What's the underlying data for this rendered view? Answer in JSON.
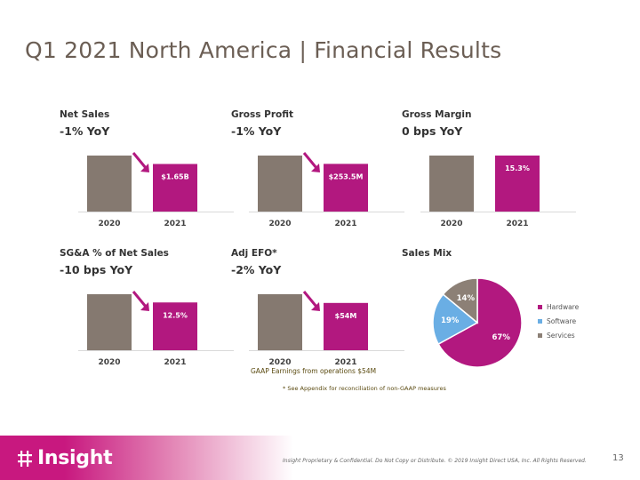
{
  "title": "Q1 2021 North America | Financial Results",
  "colors": {
    "prior": "#857970",
    "current": "#b2187f",
    "arrow": "#b2187f",
    "software": "#6aaee4",
    "services": "#8c8076"
  },
  "panels": [
    {
      "id": "net-sales",
      "title": "Net Sales",
      "subtitle": "-1% YoY"
    },
    {
      "id": "gross-profit",
      "title": "Gross Profit",
      "subtitle": "-1% YoY"
    },
    {
      "id": "gross-margin",
      "title": "Gross Margin",
      "subtitle": "0 bps YoY"
    },
    {
      "id": "sga",
      "title": "SG&A % of Net Sales",
      "subtitle": "-10 bps YoY"
    },
    {
      "id": "adj-efo",
      "title": "Adj EFO*",
      "subtitle": "-2% YoY"
    },
    {
      "id": "sales-mix",
      "title": "Sales Mix",
      "subtitle": ""
    }
  ],
  "chart_data": [
    {
      "type": "bar",
      "title": "Net Sales",
      "categories": [
        "2020",
        "2021"
      ],
      "values": [
        1.67,
        1.65
      ],
      "unit": "$B",
      "data_labels": [
        "",
        "$1.65B"
      ],
      "arrow": true
    },
    {
      "type": "bar",
      "title": "Gross Profit",
      "categories": [
        "2020",
        "2021"
      ],
      "values": [
        256,
        253.5
      ],
      "unit": "$M",
      "data_labels": [
        "",
        "$253.5M"
      ],
      "arrow": true
    },
    {
      "type": "bar",
      "title": "Gross Margin",
      "categories": [
        "2020",
        "2021"
      ],
      "values": [
        15.3,
        15.3
      ],
      "unit": "%",
      "data_labels": [
        "",
        "15.3%"
      ],
      "arrow": false
    },
    {
      "type": "bar",
      "title": "SG&A % of Net Sales",
      "categories": [
        "2020",
        "2021"
      ],
      "values": [
        12.6,
        12.5
      ],
      "unit": "%",
      "data_labels": [
        "",
        "12.5%"
      ],
      "arrow": true
    },
    {
      "type": "bar",
      "title": "Adj EFO*",
      "categories": [
        "2020",
        "2021"
      ],
      "values": [
        55,
        54
      ],
      "unit": "$M",
      "data_labels": [
        "",
        "$54M"
      ],
      "arrow": true
    },
    {
      "type": "pie",
      "title": "Sales Mix",
      "categories": [
        "Hardware",
        "Software",
        "Services"
      ],
      "values": [
        67,
        19,
        14
      ],
      "data_labels": [
        "67%",
        "19%",
        "14%"
      ],
      "legend": "right"
    }
  ],
  "notes": {
    "gaap": "GAAP Earnings from operations $54M",
    "appendix": "* See Appendix for reconciliation of non-GAAP measures"
  },
  "footer": {
    "logo": "Insight",
    "confidential": "Insight Proprietary & Confidential. Do Not Copy or Distribute. © 2019 Insight Direct USA, Inc. All Rights Reserved.",
    "page": "13"
  }
}
